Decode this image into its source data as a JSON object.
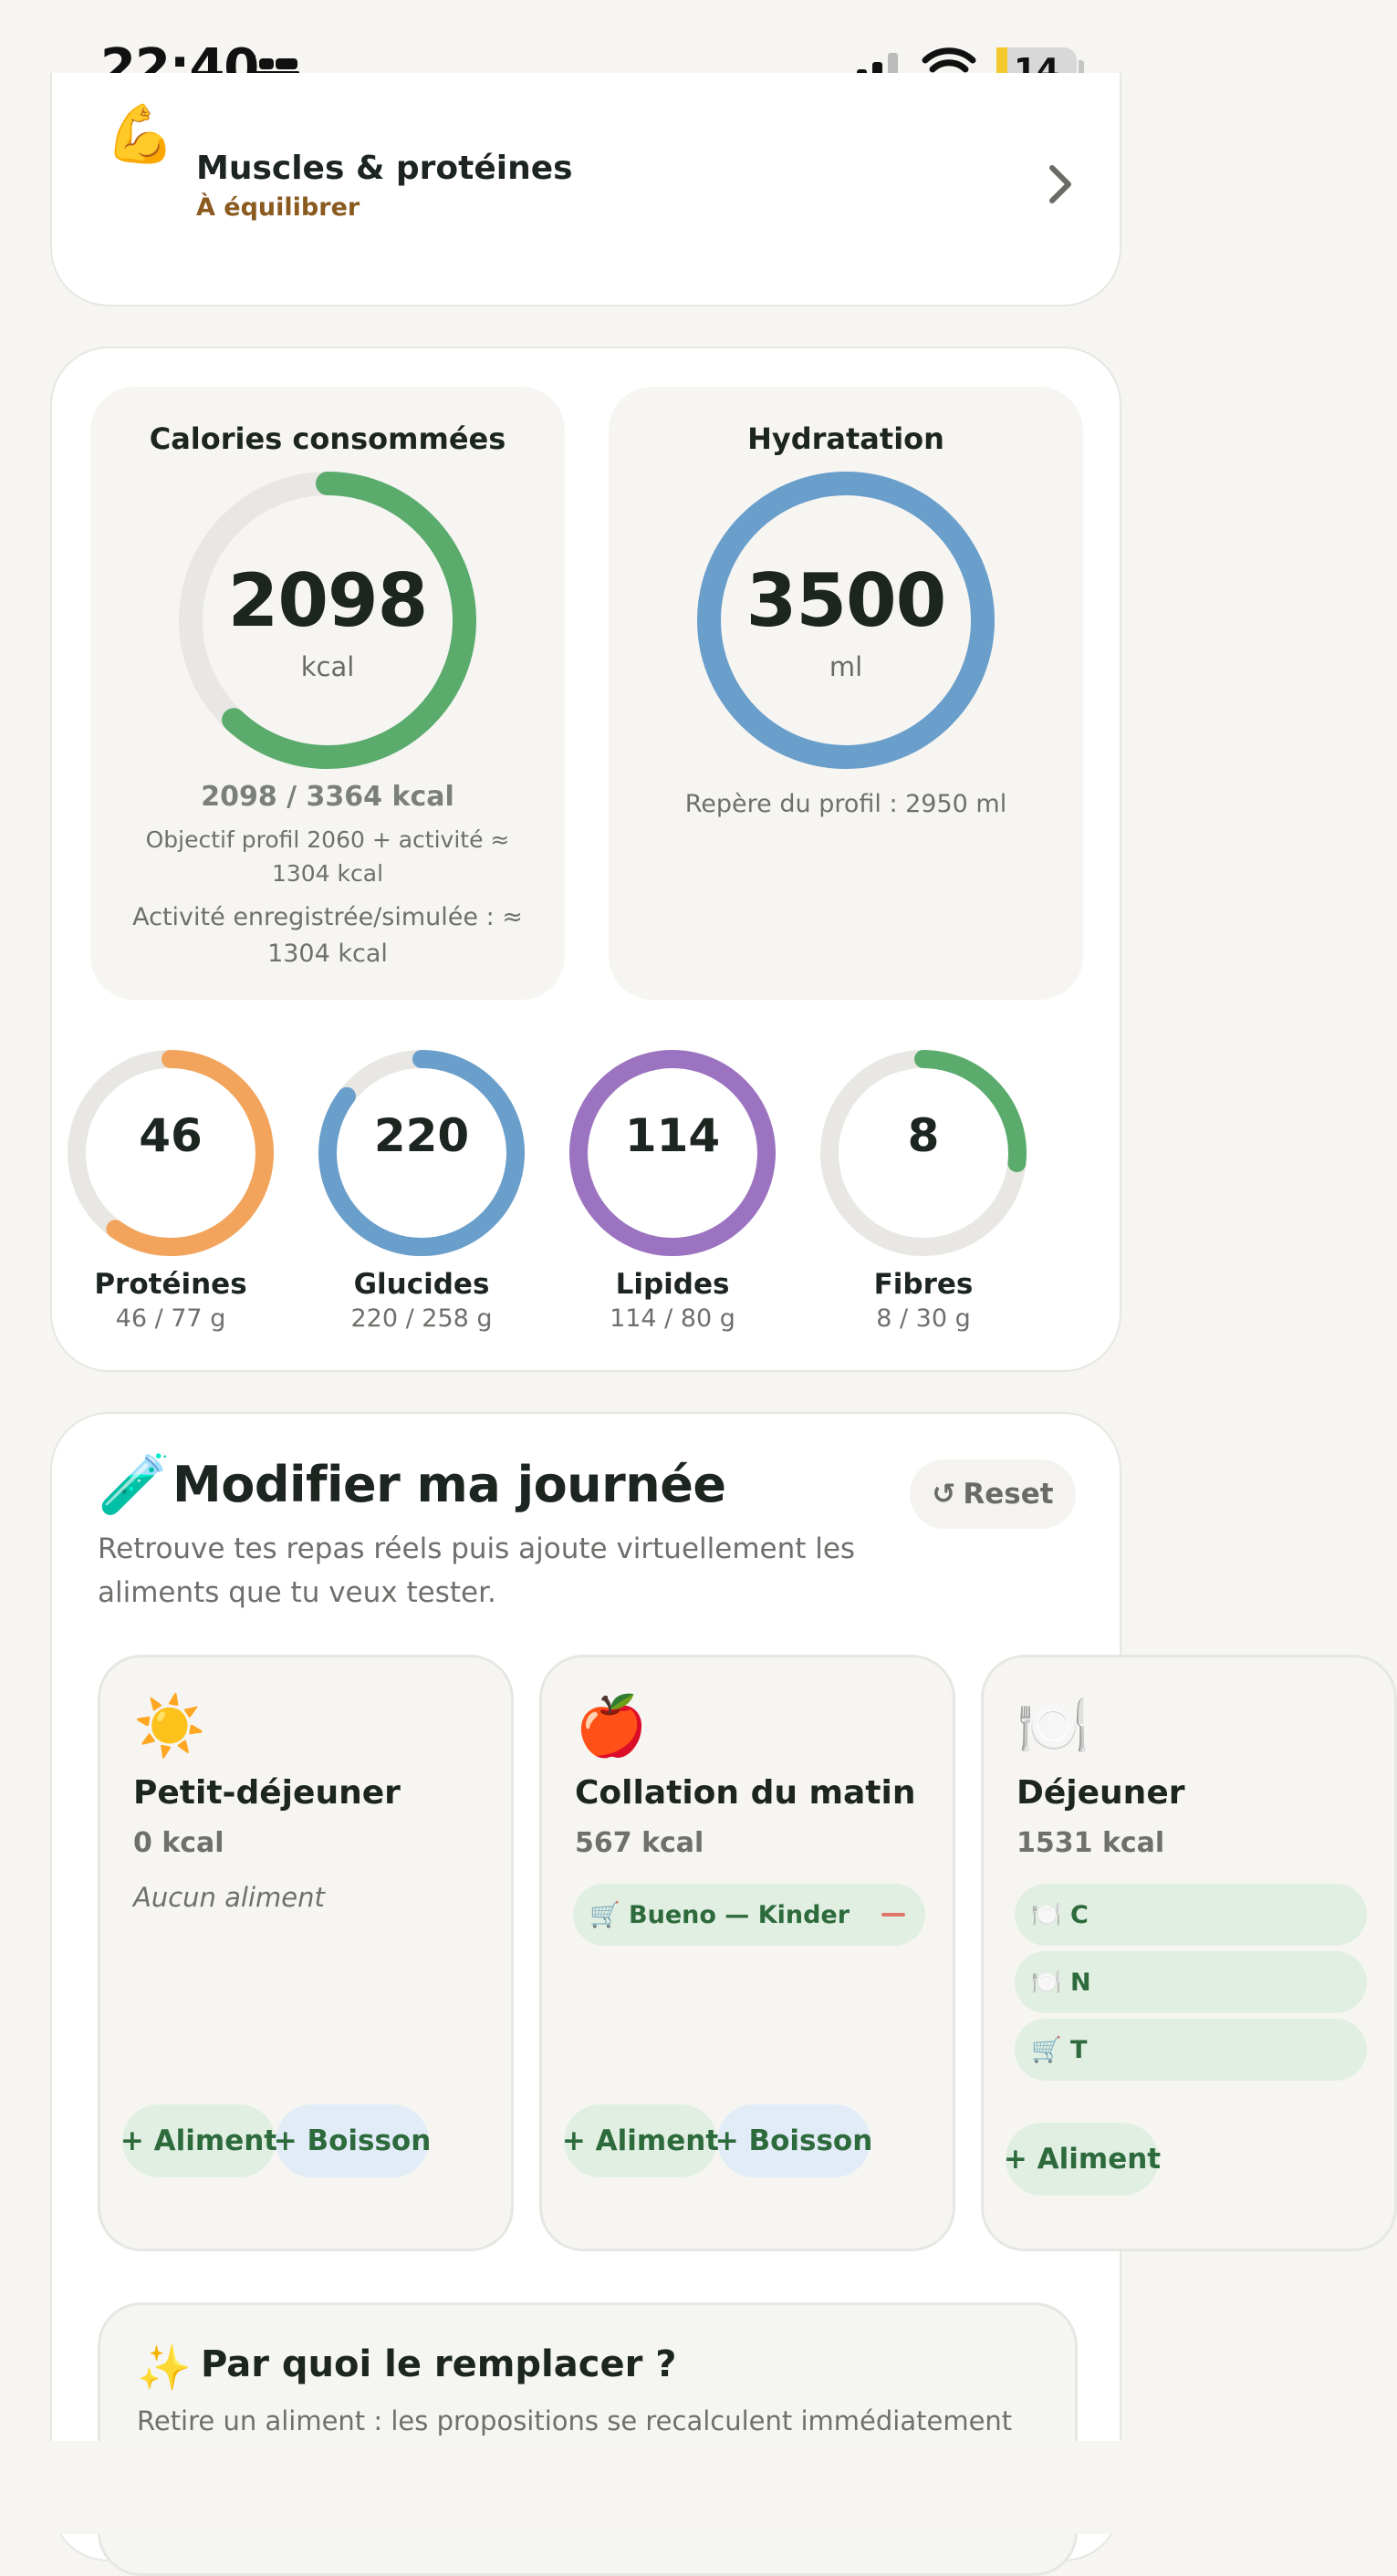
{
  "status_bar": {
    "time": "22:40",
    "battery": "14",
    "battery_level": 0.14
  },
  "muscles": {
    "emoji": "💪",
    "title": "Muscles & protéines",
    "status": "À équilibrer"
  },
  "calories": {
    "title": "Calories consommées",
    "value": "2098",
    "unit": "kcal",
    "progress": 0.62,
    "color": "#5aab6c",
    "summary": "2098 / 3364 kcal",
    "objective": "Objectif profil 2060 + activité ≈ 1304 kcal",
    "activity": "Activité enregistrée/simulée : ≈ 1304 kcal"
  },
  "hydration": {
    "title": "Hydratation",
    "value": "3500",
    "unit": "ml",
    "progress": 1.0,
    "color": "#6a9ecb",
    "note": "Repère du profil : 2950 ml"
  },
  "macros": [
    {
      "value": "46",
      "name": "Protéines",
      "detail": "46 / 77 g",
      "progress": 0.6,
      "color": "#f2a45c"
    },
    {
      "value": "220",
      "name": "Glucides",
      "detail": "220 / 258 g",
      "progress": 0.853,
      "color": "#6a9ecb"
    },
    {
      "value": "114",
      "name": "Lipides",
      "detail": "114 / 80 g",
      "progress": 1.0,
      "color": "#9b73c0"
    },
    {
      "value": "8",
      "name": "Fibres",
      "detail": "8 / 30 g",
      "progress": 0.267,
      "color": "#5aab6c"
    }
  ],
  "modify": {
    "emoji": "🧪",
    "title": "Modifier ma journée",
    "reset_icon": "↺",
    "reset_label": "Reset",
    "description": "Retrouve tes repas réels puis ajoute virtuellement les aliments que tu veux tester.",
    "meals": [
      {
        "emoji": "☀️",
        "name": "Petit-déjeuner",
        "kcal": "0 kcal",
        "empty": "Aucun aliment",
        "add_food": "+ Aliment",
        "add_drink": "+ Boisson"
      },
      {
        "emoji": "🍎",
        "name": "Collation du matin",
        "kcal": "567 kcal",
        "items": [
          "🛒 Bueno — Kinder"
        ],
        "add_food": "+ Aliment",
        "add_drink": "+ Boisson"
      },
      {
        "emoji": "🍽️",
        "name": "Déjeuner",
        "kcal": "1531 kcal",
        "items": [
          "🍽️ C",
          "🍽️ N",
          "🛒 T"
        ],
        "add_food": "+ Aliment"
      }
    ]
  },
  "replace": {
    "emoji": "✨",
    "title": "Par quoi le remplacer ?",
    "description": "Retire un aliment : les propositions se recalculent immédiatement"
  }
}
